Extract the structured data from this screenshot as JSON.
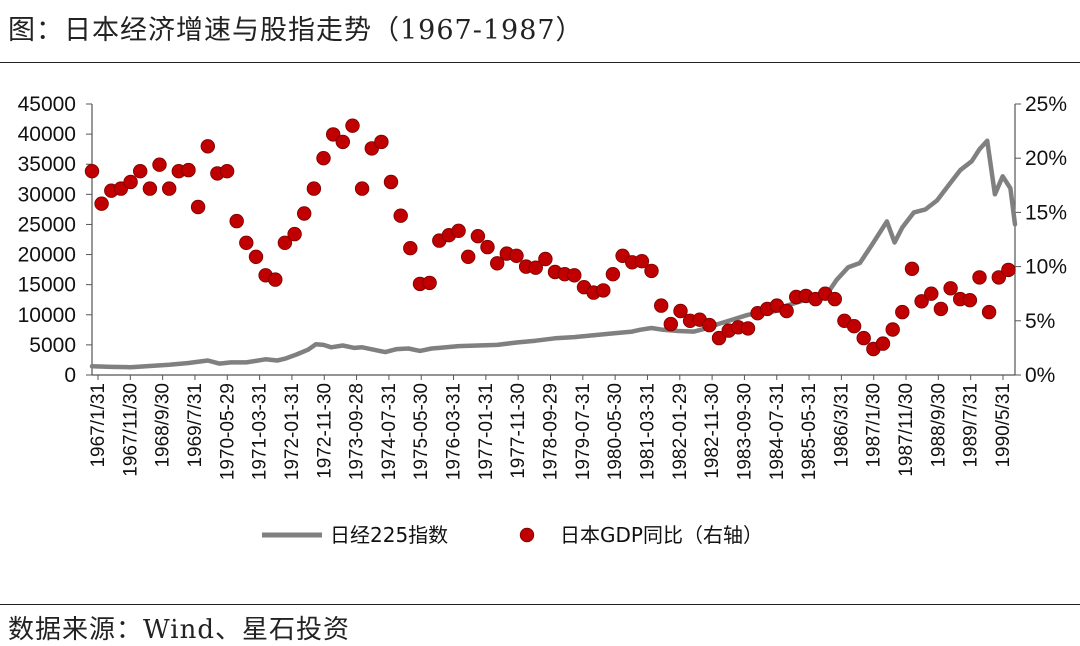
{
  "header": {
    "title": "图：日本经济增速与股指走势（1967-1987）"
  },
  "footer": {
    "source": "数据来源：Wind、星石投资"
  },
  "chart_data": {
    "type": "line",
    "title": "图：日本经济增速与股指走势（1967-1987）",
    "left_axis": {
      "ylim": [
        0,
        45000
      ],
      "ticks": [
        0,
        5000,
        10000,
        15000,
        20000,
        25000,
        30000,
        35000,
        40000,
        45000
      ]
    },
    "right_axis": {
      "ylim": [
        0,
        25
      ],
      "ticks": [
        "0%",
        "5%",
        "10%",
        "15%",
        "20%",
        "25%"
      ]
    },
    "x_tick_labels": [
      "1967/1/31",
      "1967/11/30",
      "1968/9/30",
      "1969/7/31",
      "1970-05-29",
      "1971-03-31",
      "1972-01-31",
      "1972-11-30",
      "1973-09-28",
      "1974-07-31",
      "1975-05-30",
      "1976-03-31",
      "1977-01-31",
      "1977-11-30",
      "1978-09-29",
      "1979-07-31",
      "1980-05-30",
      "1981-03-31",
      "1982-01-29",
      "1982-11-30",
      "1983-09-30",
      "1984-07-31",
      "1985-05-31",
      "1986/3/31",
      "1987/1/30",
      "1987/11/30",
      "1988/9/30",
      "1989/7/31",
      "1990/5/31"
    ],
    "x_range": [
      1967.0,
      1990.92
    ],
    "legend_position": "bottom",
    "series": [
      {
        "name": "日经225指数",
        "kind": "line",
        "axis": "left",
        "color": "#808080",
        "x": [
          1967.0,
          1967.5,
          1968.0,
          1968.5,
          1969.0,
          1969.5,
          1970.0,
          1970.3,
          1970.6,
          1971.0,
          1971.5,
          1971.8,
          1972.0,
          1972.3,
          1972.6,
          1972.8,
          1973.0,
          1973.2,
          1973.5,
          1973.8,
          1974.0,
          1974.3,
          1974.6,
          1974.9,
          1975.2,
          1975.5,
          1975.8,
          1976.0,
          1976.5,
          1977.0,
          1977.5,
          1978.0,
          1978.5,
          1979.0,
          1979.5,
          1980.0,
          1980.5,
          1981.0,
          1981.2,
          1981.5,
          1981.8,
          1982.2,
          1982.6,
          1982.9,
          1983.2,
          1983.6,
          1984.0,
          1984.3,
          1984.7,
          1985.0,
          1985.5,
          1986.0,
          1986.3,
          1986.6,
          1986.9,
          1987.2,
          1987.4,
          1987.6,
          1987.8,
          1988.0,
          1988.3,
          1988.6,
          1988.9,
          1989.2,
          1989.5,
          1989.8,
          1990.0,
          1990.2,
          1990.4,
          1990.6,
          1990.8,
          1990.92
        ],
        "y": [
          1450,
          1350,
          1300,
          1500,
          1700,
          2000,
          2400,
          1900,
          2100,
          2100,
          2600,
          2400,
          2700,
          3400,
          4200,
          5100,
          5000,
          4600,
          4900,
          4500,
          4600,
          4200,
          3800,
          4300,
          4400,
          4000,
          4400,
          4500,
          4800,
          4900,
          5000,
          5400,
          5700,
          6100,
          6300,
          6600,
          6900,
          7200,
          7500,
          7800,
          7500,
          7300,
          7200,
          7700,
          8400,
          9200,
          10000,
          10300,
          10600,
          11500,
          12500,
          13000,
          15800,
          17900,
          18600,
          21500,
          23500,
          25500,
          22000,
          24500,
          27000,
          27500,
          29000,
          31500,
          34000,
          35500,
          37500,
          38900,
          30000,
          33000,
          31000,
          25000
        ]
      },
      {
        "name": "日本GDP同比（右轴）",
        "kind": "scatter",
        "axis": "right",
        "color": "#c00000",
        "x": [
          1967.0,
          1967.25,
          1967.5,
          1967.75,
          1968.0,
          1968.25,
          1968.5,
          1968.75,
          1969.0,
          1969.25,
          1969.5,
          1969.75,
          1970.0,
          1970.25,
          1970.5,
          1970.75,
          1971.0,
          1971.25,
          1971.5,
          1971.75,
          1972.0,
          1972.25,
          1972.5,
          1972.75,
          1973.0,
          1973.25,
          1973.5,
          1973.75,
          1974.0,
          1974.25,
          1974.5,
          1974.75,
          1975.0,
          1975.25,
          1975.5,
          1975.75,
          1976.0,
          1976.25,
          1976.5,
          1976.75,
          1977.0,
          1977.25,
          1977.5,
          1977.75,
          1978.0,
          1978.25,
          1978.5,
          1978.75,
          1979.0,
          1979.25,
          1979.5,
          1979.75,
          1980.0,
          1980.25,
          1980.5,
          1980.75,
          1981.0,
          1981.25,
          1981.5,
          1981.75,
          1982.0,
          1982.25,
          1982.5,
          1982.75,
          1983.0,
          1983.25,
          1983.5,
          1983.75,
          1984.0,
          1984.25,
          1984.5,
          1984.75,
          1985.0,
          1985.25,
          1985.5,
          1985.75,
          1986.0,
          1986.25,
          1986.5,
          1986.75,
          1987.0,
          1987.25,
          1987.5,
          1987.75,
          1988.0,
          1988.25,
          1988.5,
          1988.75,
          1989.0,
          1989.25,
          1989.5,
          1989.75,
          1990.0,
          1990.25,
          1990.5,
          1990.75
        ],
        "y": [
          18.8,
          15.8,
          17.0,
          17.2,
          17.8,
          18.8,
          17.2,
          19.4,
          17.2,
          18.8,
          18.9,
          15.5,
          21.1,
          18.6,
          18.8,
          14.2,
          12.2,
          10.9,
          9.2,
          8.8,
          12.2,
          13.0,
          14.9,
          17.2,
          20.0,
          22.2,
          21.5,
          23.0,
          17.2,
          20.9,
          21.5,
          17.8,
          14.7,
          11.7,
          8.4,
          8.5,
          12.4,
          12.9,
          13.3,
          10.9,
          12.8,
          11.8,
          10.3,
          11.2,
          11.0,
          10.0,
          9.9,
          10.7,
          9.5,
          9.3,
          9.2,
          8.1,
          7.6,
          7.8,
          9.3,
          11.0,
          10.4,
          10.5,
          9.6,
          6.4,
          4.7,
          5.9,
          5.0,
          5.1,
          4.6,
          3.4,
          4.1,
          4.4,
          4.3,
          5.7,
          6.1,
          6.4,
          5.9,
          7.2,
          7.3,
          7.0,
          7.5,
          7.0,
          5.0,
          4.5,
          3.4,
          2.4,
          2.9,
          4.2,
          5.8,
          9.8,
          6.8,
          7.5,
          6.1,
          8.0,
          7.0,
          6.9,
          9.0,
          5.8,
          9.0,
          9.7
        ]
      }
    ]
  }
}
